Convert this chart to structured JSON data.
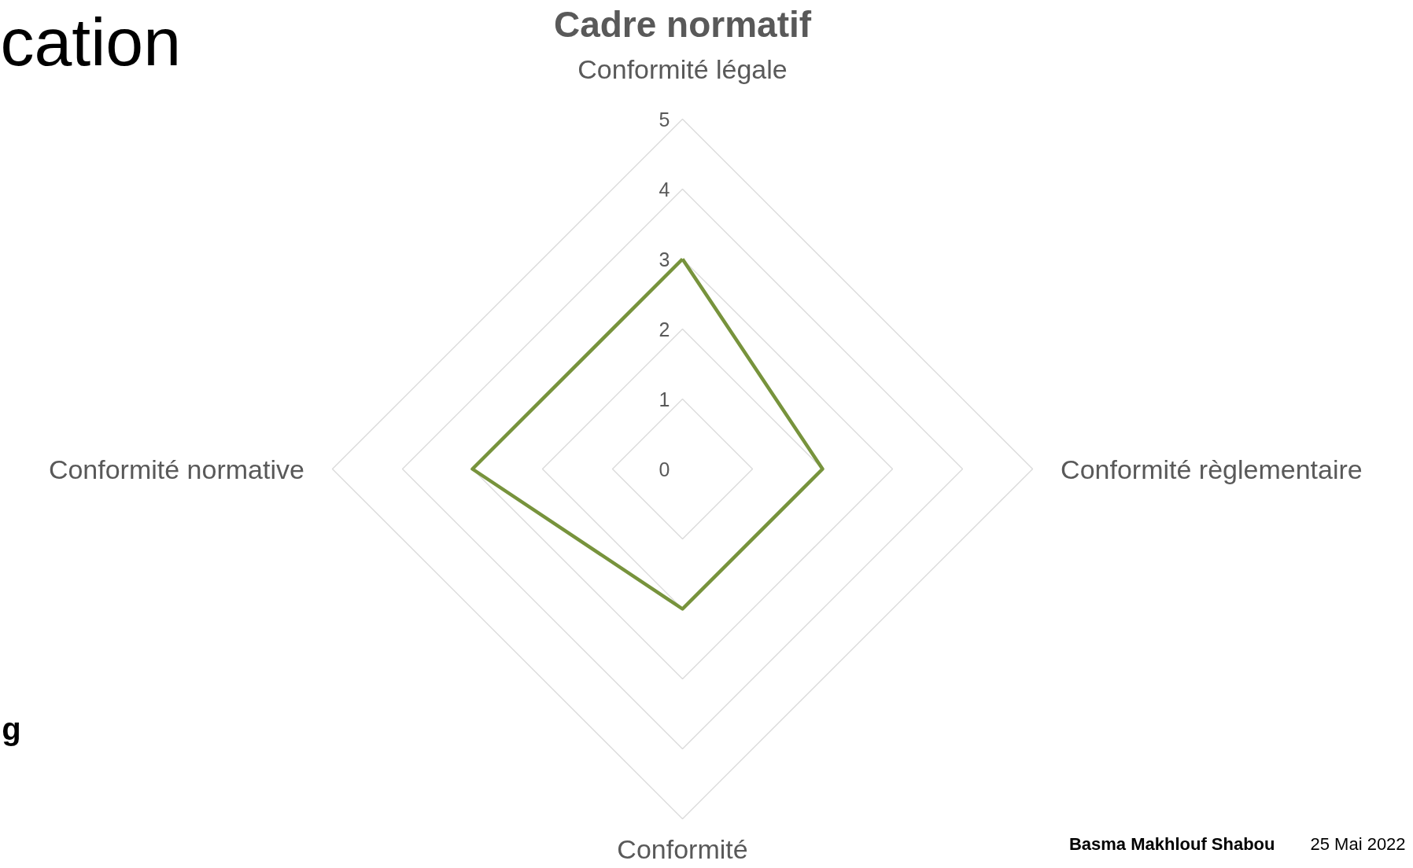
{
  "chart_data": {
    "type": "radar",
    "title": "Cadre normatif",
    "categories": [
      "Conformité légale",
      "Conformité règlementaire",
      "Conformité",
      "Conformité normative"
    ],
    "series": [
      {
        "color": "#77933c",
        "values": [
          3,
          2,
          2,
          3
        ]
      }
    ],
    "ylim": [
      0,
      5
    ],
    "yticks": [
      0,
      1,
      2,
      3,
      4,
      5
    ],
    "grid": true,
    "annotations": [
      "cation",
      "g",
      "Basma Makhlouf Shabou",
      "25 Mai 2022"
    ]
  }
}
